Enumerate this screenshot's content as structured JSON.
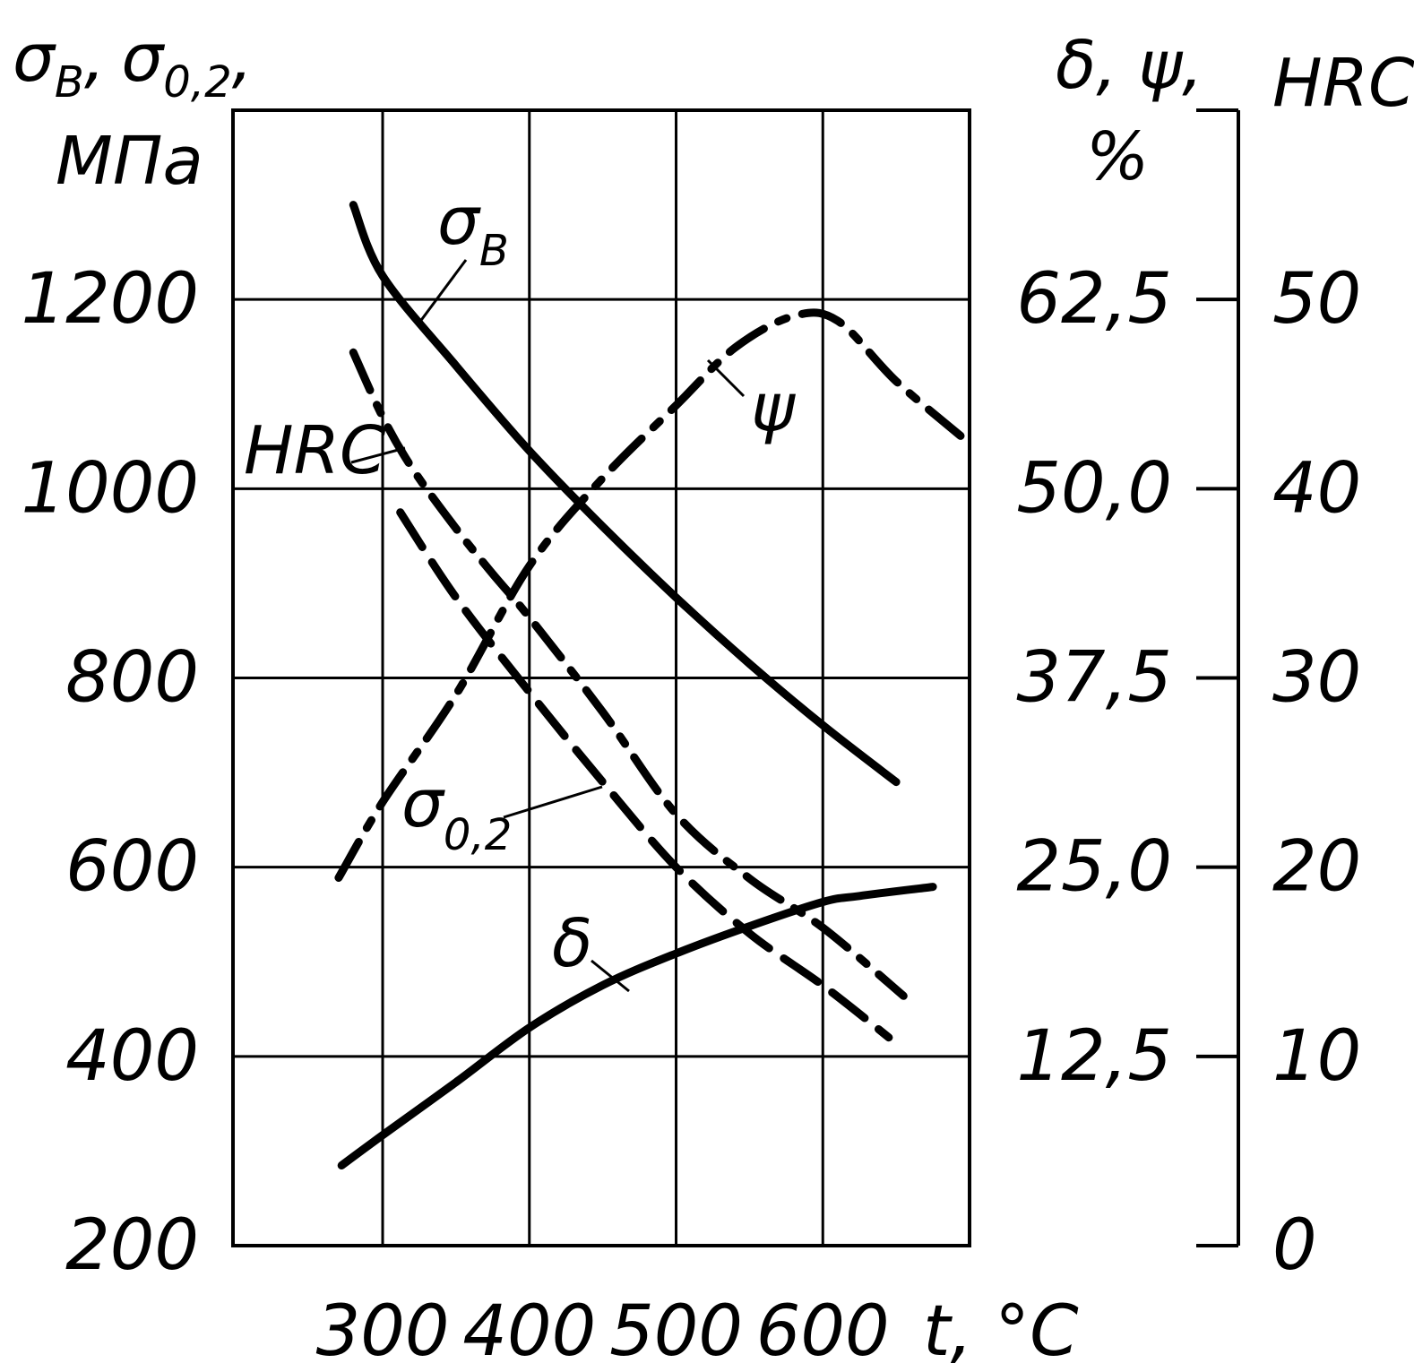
{
  "chart_data": {
    "type": "line",
    "x": {
      "label": "t, °C",
      "range": [
        198,
        700
      ],
      "ticks": [
        "300",
        "400",
        "500",
        "600"
      ],
      "tick_values": [
        300,
        400,
        500,
        600
      ]
    },
    "y_left": {
      "label_main": "σ",
      "label_sub_b": "B",
      "label_sep": ",",
      "label_sub_02": "0,2",
      "label_unit": "МПа",
      "range": [
        200,
        1400
      ],
      "ticks": [
        "200",
        "400",
        "600",
        "800",
        "1000",
        "1200"
      ],
      "tick_values": [
        200,
        400,
        600,
        800,
        1000,
        1200
      ]
    },
    "y_right_pct": {
      "label": "δ, ψ,",
      "label_unit": "%",
      "range": [
        0,
        75
      ],
      "ticks": [
        "12,5",
        "25,0",
        "37,5",
        "50,0",
        "62,5"
      ],
      "tick_values": [
        12.5,
        25,
        37.5,
        50,
        62.5
      ]
    },
    "y_right_hrc": {
      "label": "HRC",
      "range": [
        0,
        60
      ],
      "ticks": [
        "0",
        "10",
        "20",
        "30",
        "40",
        "50"
      ],
      "tick_values": [
        0,
        10,
        20,
        30,
        40,
        50
      ]
    },
    "grid": true,
    "series": [
      {
        "name": "σ",
        "name_sub": "B",
        "axis": "left",
        "style": "solid",
        "points": [
          [
            280,
            1300
          ],
          [
            300,
            1225
          ],
          [
            350,
            1130
          ],
          [
            400,
            1040
          ],
          [
            450,
            960
          ],
          [
            500,
            885
          ],
          [
            550,
            815
          ],
          [
            600,
            750
          ],
          [
            650,
            690
          ]
        ]
      },
      {
        "name": "σ",
        "name_sub": "0,2",
        "axis": "left",
        "style": "dash",
        "points": [
          [
            312,
            975
          ],
          [
            350,
            885
          ],
          [
            400,
            785
          ],
          [
            450,
            690
          ],
          [
            500,
            600
          ],
          [
            550,
            530
          ],
          [
            600,
            475
          ],
          [
            645,
            420
          ]
        ]
      },
      {
        "name": "HRC",
        "axis": "hrc",
        "style": "dash-dot",
        "points": [
          [
            280,
            47.2
          ],
          [
            300,
            43.8
          ],
          [
            320,
            41.1
          ],
          [
            350,
            37.9
          ],
          [
            375,
            35.5
          ],
          [
            400,
            33.2
          ],
          [
            450,
            28.2
          ],
          [
            500,
            22.8
          ],
          [
            550,
            19.4
          ],
          [
            600,
            16.8
          ],
          [
            655,
            13.2
          ]
        ]
      },
      {
        "name": "ψ",
        "axis": "pct",
        "style": "dash-dot",
        "points": [
          [
            270,
            24.3
          ],
          [
            300,
            29.3
          ],
          [
            350,
            36.4
          ],
          [
            400,
            44.9
          ],
          [
            450,
            50.7
          ],
          [
            500,
            55.5
          ],
          [
            540,
            59.3
          ],
          [
            580,
            61.4
          ],
          [
            610,
            61.1
          ],
          [
            650,
            57.1
          ],
          [
            700,
            53.0
          ]
        ]
      },
      {
        "name": "δ",
        "axis": "pct",
        "style": "solid",
        "points": [
          [
            272,
            5.3
          ],
          [
            300,
            7.3
          ],
          [
            350,
            10.8
          ],
          [
            400,
            14.4
          ],
          [
            450,
            17.2
          ],
          [
            500,
            19.3
          ],
          [
            550,
            21.1
          ],
          [
            600,
            22.7
          ],
          [
            625,
            23.1
          ],
          [
            675,
            23.7
          ]
        ]
      }
    ]
  }
}
